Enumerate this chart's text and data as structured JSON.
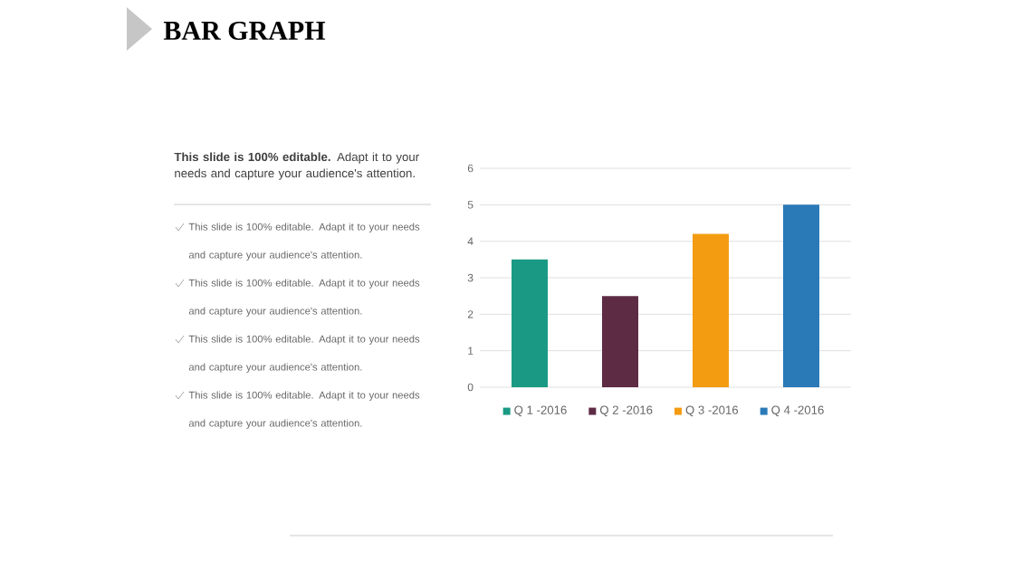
{
  "chart_data": {
    "type": "bar",
    "title": "BAR GRAPH",
    "annotations": [
      "**This slide is 100% editable.** Adapt it to your needs and capture your audience's attention.",
      "This slide is 100% editable. Adapt it to your needs and capture your audience's attention.",
      "This slide is 100% editable. Adapt it to your needs and capture your audience's attention.",
      "This slide is 100% editable. Adapt it to your needs and capture your audience's attention.",
      "This slide is 100% editable. Adapt it to your needs and capture your audience's attention."
    ],
    "categories": [
      null,
      null,
      null,
      null
    ],
    "series": [
      {
        "name": "Q 1 -2016",
        "color": "#1a9a84",
        "values": [
          3.5,
          null,
          null,
          null
        ]
      },
      {
        "name": "Q 2 -2016",
        "color": "#5e2b45",
        "values": [
          null,
          2.5,
          null,
          null
        ]
      },
      {
        "name": "Q 3 -2016",
        "color": "#f39c12",
        "values": [
          null,
          null,
          4.2,
          null
        ]
      },
      {
        "name": "Q 4 -2016",
        "color": "#2a7ab8",
        "values": [
          null,
          null,
          null,
          5
        ]
      }
    ],
    "ylim": [
      0,
      6
    ],
    "yticks": [
      0,
      1,
      2,
      3,
      4,
      5,
      6
    ],
    "grid": "y",
    "legend": "bottom",
    "tick_labels": "y"
  }
}
